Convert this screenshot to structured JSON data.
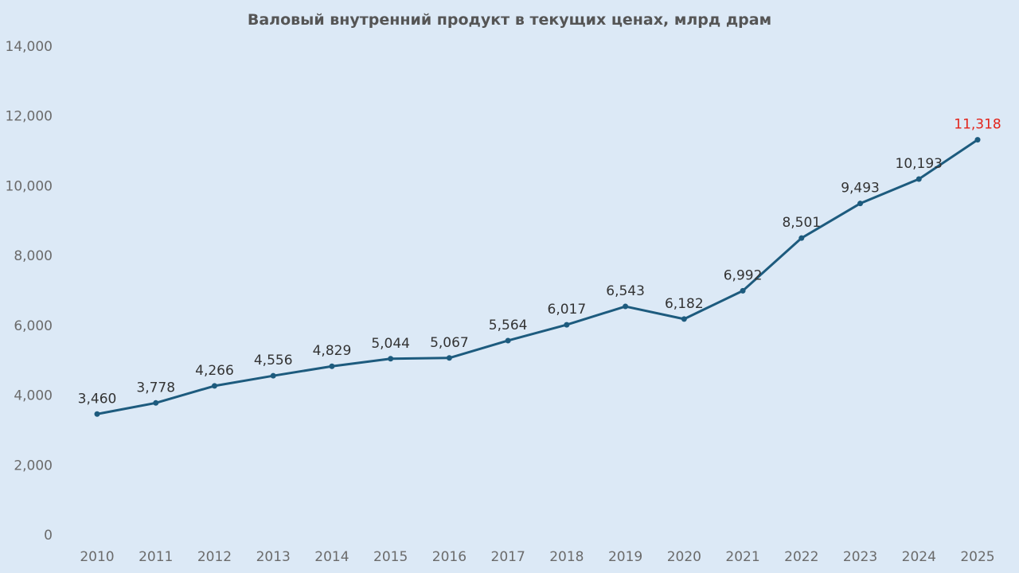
{
  "chart_data": {
    "type": "line",
    "title": "Валовый внутренний продукт в текущих ценах, млрд драм",
    "xlabel": "",
    "ylabel": "",
    "x": [
      "2010",
      "2011",
      "2012",
      "2013",
      "2014",
      "2015",
      "2016",
      "2017",
      "2018",
      "2019",
      "2020",
      "2021",
      "2022",
      "2023",
      "2024",
      "2025"
    ],
    "series": [
      {
        "values": [
          3460,
          3778,
          4266,
          4556,
          4829,
          5044,
          5067,
          5564,
          6017,
          6543,
          6182,
          6992,
          8501,
          9493,
          10193,
          11318
        ],
        "color": "#1d5b7e"
      }
    ],
    "data_labels": [
      "3,460",
      "3,778",
      "4,266",
      "4,556",
      "4,829",
      "5,044",
      "5,067",
      "5,564",
      "6,017",
      "6,543",
      "6,182",
      "6,992",
      "8,501",
      "9,493",
      "10,193",
      "11,318"
    ],
    "highlight_last_label_color": "#e2231a",
    "label_color": "#333333",
    "ylim": [
      0,
      14000
    ],
    "yticks": [
      0,
      2000,
      4000,
      6000,
      8000,
      10000,
      12000,
      14000
    ],
    "ytick_labels": [
      "0",
      "2,000",
      "4,000",
      "6,000",
      "8,000",
      "10,000",
      "12,000",
      "14,000"
    ],
    "grid": false,
    "legend": "none",
    "background_color": "#dce9f6"
  }
}
